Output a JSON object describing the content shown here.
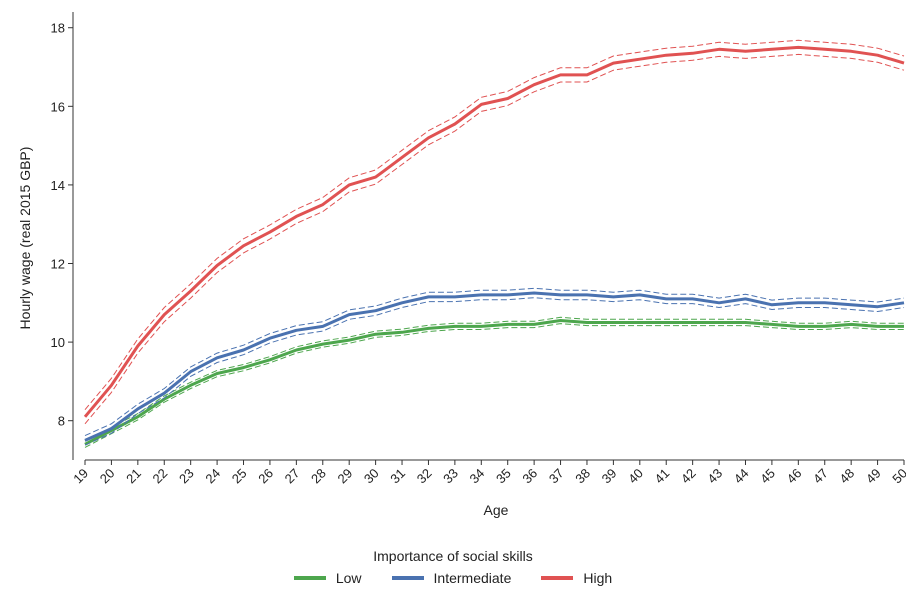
{
  "chart_data": {
    "type": "line",
    "title": "",
    "xlabel": "Age",
    "ylabel": "Hourly wage (real 2015 GBP)",
    "x": [
      19,
      20,
      21,
      22,
      23,
      24,
      25,
      26,
      27,
      28,
      29,
      30,
      31,
      32,
      33,
      34,
      35,
      36,
      37,
      38,
      39,
      40,
      41,
      42,
      43,
      44,
      45,
      46,
      47,
      48,
      49,
      50
    ],
    "xlim": [
      19,
      50
    ],
    "ylim": [
      7,
      18.4
    ],
    "yticks": [
      8,
      10,
      12,
      14,
      16,
      18
    ],
    "grid": false,
    "legend_title": "Importance of social skills",
    "legend_position": "bottom",
    "series": [
      {
        "name": "Low",
        "color": "#4da64d",
        "values": [
          7.4,
          7.75,
          8.1,
          8.55,
          8.9,
          9.2,
          9.35,
          9.55,
          9.8,
          9.95,
          10.05,
          10.2,
          10.25,
          10.35,
          10.4,
          10.4,
          10.45,
          10.45,
          10.55,
          10.5,
          10.5,
          10.5,
          10.5,
          10.5,
          10.5,
          10.5,
          10.45,
          10.4,
          10.4,
          10.45,
          10.4,
          10.4
        ],
        "ci_halfwidth": 0.08
      },
      {
        "name": "Intermediate",
        "color": "#4a72b0",
        "values": [
          7.5,
          7.8,
          8.3,
          8.7,
          9.25,
          9.6,
          9.8,
          10.1,
          10.3,
          10.4,
          10.7,
          10.8,
          11.0,
          11.15,
          11.15,
          11.2,
          11.2,
          11.25,
          11.2,
          11.2,
          11.15,
          11.2,
          11.1,
          11.1,
          11.0,
          11.1,
          10.95,
          11.0,
          11.0,
          10.95,
          10.9,
          11.0
        ],
        "ci_halfwidth": 0.12
      },
      {
        "name": "High",
        "color": "#e05252",
        "values": [
          8.1,
          8.9,
          9.9,
          10.7,
          11.3,
          11.95,
          12.45,
          12.8,
          13.2,
          13.5,
          14.0,
          14.2,
          14.7,
          15.2,
          15.55,
          16.05,
          16.2,
          16.55,
          16.8,
          16.8,
          17.1,
          17.2,
          17.3,
          17.35,
          17.45,
          17.4,
          17.45,
          17.5,
          17.45,
          17.4,
          17.3,
          17.1
        ],
        "ci_halfwidth": 0.18
      }
    ]
  }
}
